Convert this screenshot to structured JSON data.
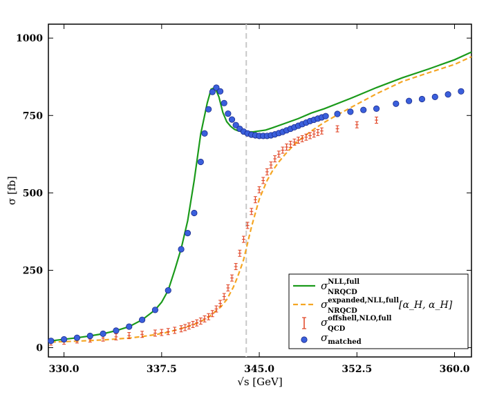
{
  "chart_data": {
    "type": "line",
    "title": "",
    "xlabel": "√s [GeV]",
    "ylabel": "σ [fb]",
    "xlim": [
      328.8,
      361.3
    ],
    "ylim": [
      -30,
      1045
    ],
    "xticks": [
      "330.0",
      "337.5",
      "345.0",
      "352.5",
      "360.0"
    ],
    "xtick_values": [
      330.0,
      337.5,
      345.0,
      352.5,
      360.0
    ],
    "yticks": [
      "0",
      "250",
      "500",
      "750",
      "1000"
    ],
    "ytick_values": [
      0,
      250,
      500,
      750,
      1000
    ],
    "threshold_line_x": 344.0,
    "legend_position": "lower-right",
    "colors": {
      "nll_full": "#1a9a1a",
      "expanded": "#f5a623",
      "offshell": "#e04020",
      "matched_fill": "#3a5fdc",
      "matched_edge": "#1a2a8a",
      "threshold": "#c8c8c8"
    },
    "series": [
      {
        "name": "nll_full",
        "label_main": "σ",
        "label_sup": "NLL,full",
        "label_sub": "NRQCD",
        "label_suffix": "",
        "style": "solid-line",
        "x": [
          329.0,
          330.0,
          331.0,
          332.0,
          333.0,
          334.0,
          335.0,
          336.0,
          337.0,
          337.5,
          338.0,
          338.5,
          339.0,
          339.5,
          340.0,
          340.5,
          341.0,
          341.3,
          341.6,
          341.9,
          342.2,
          342.5,
          342.8,
          343.1,
          343.4,
          343.7,
          344.0,
          344.5,
          345.0,
          345.5,
          346.0,
          347.0,
          348.0,
          349.0,
          350.0,
          352.0,
          354.0,
          356.0,
          358.0,
          360.0,
          361.3
        ],
        "values": [
          22,
          27,
          32,
          38,
          45,
          55,
          68,
          90,
          122,
          147,
          185,
          250,
          320,
          410,
          540,
          690,
          790,
          835,
          840,
          810,
          760,
          730,
          715,
          705,
          700,
          698,
          697,
          697,
          700,
          703,
          710,
          725,
          740,
          758,
          772,
          805,
          840,
          872,
          900,
          930,
          955
        ]
      },
      {
        "name": "expanded",
        "label_main": "σ",
        "label_sup": "expanded,NLL,full",
        "label_sub": "NRQCD",
        "label_suffix": "[α_H, α_H]",
        "style": "dashed-line",
        "x": [
          329.0,
          331.0,
          333.0,
          335.0,
          336.0,
          337.0,
          338.0,
          339.0,
          340.0,
          341.0,
          342.0,
          342.5,
          343.0,
          343.3,
          343.6,
          343.8,
          344.0,
          344.2,
          344.4,
          344.6,
          344.8,
          345.0,
          345.3,
          345.6,
          346.0,
          346.5,
          347.0,
          347.5,
          348.0,
          349.0,
          350.0,
          351.0,
          352.0,
          354.0,
          356.0,
          358.0,
          360.0,
          361.3
        ],
        "values": [
          18,
          21,
          25,
          31,
          36,
          42,
          50,
          62,
          75,
          95,
          130,
          155,
          195,
          225,
          260,
          285,
          320,
          355,
          390,
          420,
          450,
          480,
          510,
          540,
          570,
          600,
          625,
          648,
          668,
          700,
          728,
          752,
          775,
          820,
          860,
          888,
          915,
          940
        ]
      },
      {
        "name": "offshell",
        "label_main": "σ",
        "label_sup": "offshell,NLO,full",
        "label_sub": "QCD",
        "label_suffix": "",
        "style": "error-bars",
        "x": [
          329.0,
          330.0,
          331.0,
          332.0,
          333.0,
          334.0,
          335.0,
          336.0,
          337.0,
          337.5,
          338.0,
          338.5,
          339.0,
          339.3,
          339.6,
          339.9,
          340.2,
          340.5,
          340.8,
          341.1,
          341.4,
          341.7,
          342.0,
          342.3,
          342.6,
          342.9,
          343.2,
          343.5,
          343.8,
          344.1,
          344.4,
          344.7,
          345.0,
          345.3,
          345.6,
          345.9,
          346.2,
          346.5,
          346.8,
          347.1,
          347.4,
          347.7,
          348.0,
          348.3,
          348.6,
          348.9,
          349.2,
          349.5,
          349.8,
          351.0,
          352.5,
          354.0
        ],
        "values": [
          18,
          21,
          25,
          28,
          31,
          35,
          39,
          43,
          47,
          49,
          52,
          56,
          61,
          65,
          70,
          75,
          80,
          86,
          93,
          100,
          110,
          125,
          143,
          165,
          193,
          225,
          262,
          305,
          350,
          395,
          440,
          478,
          510,
          540,
          568,
          590,
          610,
          625,
          638,
          648,
          657,
          664,
          670,
          675,
          680,
          685,
          690,
          695,
          700,
          707,
          720,
          735
        ]
      },
      {
        "name": "matched",
        "label_main": "σ",
        "label_sup": "",
        "label_sub": "matched",
        "label_suffix": "",
        "style": "markers",
        "x": [
          329.0,
          330.0,
          331.0,
          332.0,
          333.0,
          334.0,
          335.0,
          336.0,
          337.0,
          338.0,
          339.0,
          339.5,
          340.0,
          340.5,
          340.8,
          341.1,
          341.4,
          341.7,
          342.0,
          342.3,
          342.6,
          342.9,
          343.2,
          343.5,
          343.8,
          344.1,
          344.4,
          344.7,
          345.0,
          345.3,
          345.6,
          345.9,
          346.2,
          346.5,
          346.8,
          347.1,
          347.4,
          347.7,
          348.0,
          348.3,
          348.6,
          348.9,
          349.2,
          349.5,
          349.8,
          350.1,
          351.0,
          352.0,
          353.0,
          354.0,
          355.5,
          356.5,
          357.5,
          358.5,
          359.5,
          360.5
        ],
        "values": [
          22,
          27,
          32,
          38,
          45,
          55,
          68,
          90,
          122,
          185,
          318,
          370,
          435,
          600,
          692,
          770,
          826,
          840,
          828,
          790,
          756,
          737,
          719,
          707,
          698,
          692,
          688,
          686,
          684,
          684,
          684,
          686,
          689,
          693,
          697,
          702,
          707,
          712,
          717,
          722,
          727,
          732,
          736,
          740,
          744,
          748,
          755,
          762,
          768,
          772,
          788,
          797,
          803,
          810,
          818,
          828
        ]
      }
    ]
  }
}
